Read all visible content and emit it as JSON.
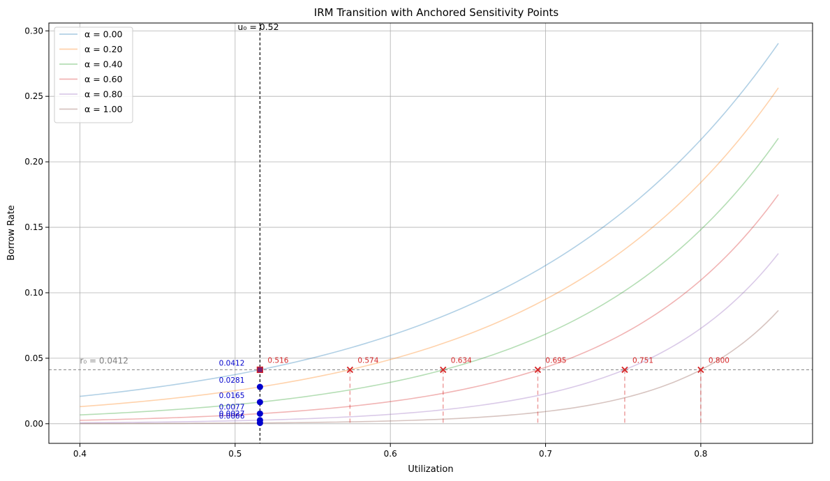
{
  "chart_data": {
    "type": "line",
    "title": "IRM Transition with Anchored Sensitivity Points",
    "xlabel": "Utilization",
    "ylabel": "Borrow Rate",
    "xlim": [
      0.38,
      0.872
    ],
    "ylim": [
      -0.015,
      0.306
    ],
    "xticks": [
      0.4,
      0.5,
      0.6,
      0.7,
      0.8
    ],
    "xtick_labels": [
      "0.4",
      "0.5",
      "0.6",
      "0.7",
      "0.8"
    ],
    "yticks": [
      0.0,
      0.05,
      0.1,
      0.15,
      0.2,
      0.25,
      0.3
    ],
    "ytick_labels": [
      "0.00",
      "0.05",
      "0.10",
      "0.15",
      "0.20",
      "0.25",
      "0.30"
    ],
    "grid": true,
    "legend_position": "upper-left",
    "x_range": [
      0.4,
      0.85
    ],
    "series": [
      {
        "name": "α = 0.00",
        "color": "#1f77b4",
        "anchor_u": 0.516,
        "rate_at_u0": 0.0412,
        "rate_at_end": 0.2905
      },
      {
        "name": "α = 0.20",
        "color": "#ff7f0e",
        "anchor_u": 0.574,
        "rate_at_u0": 0.0281,
        "rate_at_end": 0.2565
      },
      {
        "name": "α = 0.40",
        "color": "#2ca02c",
        "anchor_u": 0.634,
        "rate_at_u0": 0.0165,
        "rate_at_end": 0.218
      },
      {
        "name": "α = 0.60",
        "color": "#d62728",
        "anchor_u": 0.695,
        "rate_at_u0": 0.0077,
        "rate_at_end": 0.175
      },
      {
        "name": "α = 0.80",
        "color": "#9467bd",
        "anchor_u": 0.751,
        "rate_at_u0": 0.0027,
        "rate_at_end": 0.13
      },
      {
        "name": "α = 1.00",
        "color": "#8c564b",
        "anchor_u": 0.8,
        "rate_at_u0": 0.0006,
        "rate_at_end": 0.0865
      }
    ],
    "u0_value": 0.516,
    "u0_label": "u₀ = 0.52",
    "r0_value": 0.0412,
    "r0_label": "r₀ = 0.0412",
    "anchor_labels": [
      "0.516",
      "0.574",
      "0.634",
      "0.695",
      "0.751",
      "0.800"
    ],
    "rate_labels": [
      "0.0412",
      "0.0281",
      "0.0165",
      "0.0077",
      "0.0027",
      "0.0006"
    ],
    "colors": {
      "anchor_marker": "#d62728",
      "rate_point": "#0000cc",
      "rate_label": "#0000cc",
      "reference_line": "#808080",
      "grid": "#b0b0b0"
    }
  }
}
